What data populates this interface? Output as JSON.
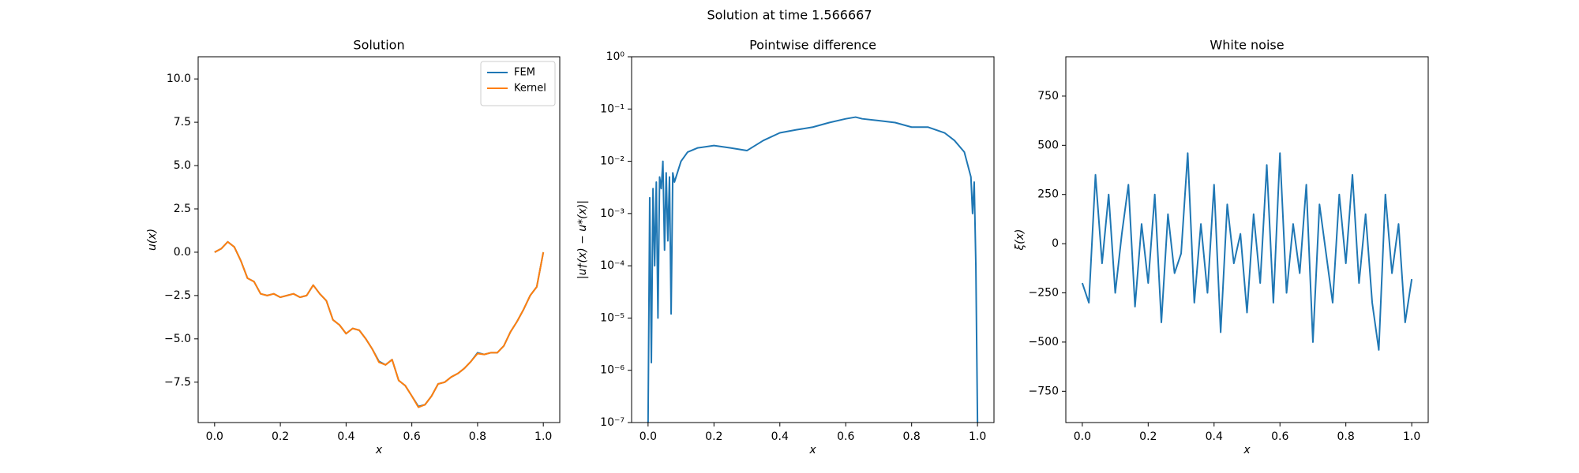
{
  "title": "Solution at time 1.566667",
  "chart_data": [
    {
      "type": "line",
      "title": "Solution",
      "xlabel": "x",
      "ylabel": "u(x)",
      "x": [
        0,
        0.02,
        0.04,
        0.06,
        0.08,
        0.1,
        0.12,
        0.14,
        0.16,
        0.18,
        0.2,
        0.22,
        0.24,
        0.26,
        0.28,
        0.3,
        0.32,
        0.34,
        0.36,
        0.38,
        0.4,
        0.42,
        0.44,
        0.46,
        0.48,
        0.5,
        0.52,
        0.54,
        0.56,
        0.58,
        0.6,
        0.62,
        0.64,
        0.66,
        0.68,
        0.7,
        0.72,
        0.74,
        0.76,
        0.78,
        0.8,
        0.82,
        0.84,
        0.86,
        0.88,
        0.9,
        0.92,
        0.94,
        0.96,
        0.98,
        1.0
      ],
      "series": [
        {
          "name": "FEM",
          "color": "#1f77b4",
          "values": [
            0,
            0.2,
            0.6,
            0.3,
            -0.5,
            -1.5,
            -1.7,
            -2.4,
            -2.5,
            -2.4,
            -2.6,
            -2.5,
            -2.4,
            -2.6,
            -2.5,
            -1.9,
            -2.4,
            -2.8,
            -3.9,
            -4.2,
            -4.7,
            -4.4,
            -4.5,
            -5.0,
            -5.6,
            -6.3,
            -6.5,
            -6.2,
            -7.4,
            -7.7,
            -8.3,
            -8.9,
            -8.8,
            -8.3,
            -7.6,
            -7.5,
            -7.2,
            -7.0,
            -6.7,
            -6.3,
            -5.8,
            -5.9,
            -5.8,
            -5.8,
            -5.4,
            -4.6,
            -4.0,
            -3.3,
            -2.5,
            -2.0,
            0.0
          ]
        },
        {
          "name": "Kernel",
          "color": "#ff7f0e",
          "values": [
            0,
            0.2,
            0.6,
            0.3,
            -0.5,
            -1.5,
            -1.7,
            -2.4,
            -2.5,
            -2.4,
            -2.6,
            -2.5,
            -2.4,
            -2.6,
            -2.5,
            -1.9,
            -2.4,
            -2.8,
            -3.9,
            -4.2,
            -4.7,
            -4.4,
            -4.5,
            -5.0,
            -5.6,
            -6.35,
            -6.5,
            -6.2,
            -7.4,
            -7.7,
            -8.3,
            -8.95,
            -8.8,
            -8.3,
            -7.6,
            -7.5,
            -7.2,
            -7.0,
            -6.7,
            -6.3,
            -5.85,
            -5.9,
            -5.8,
            -5.8,
            -5.4,
            -4.6,
            -4.0,
            -3.3,
            -2.5,
            -2.0,
            0.0
          ]
        }
      ],
      "legend": "upper right",
      "xlim": [
        -0.05,
        1.05
      ],
      "xticks": [
        {
          "value": 0,
          "label": "0.0"
        },
        {
          "value": 0.2,
          "label": "0.2"
        },
        {
          "value": 0.4,
          "label": "0.4"
        },
        {
          "value": 0.6,
          "label": "0.6"
        },
        {
          "value": 0.8,
          "label": "0.8"
        },
        {
          "value": 1,
          "label": "1.0"
        }
      ],
      "ylim": [
        -9.83,
        11.28
      ],
      "yticks": [
        {
          "value": -7.5,
          "label": "−7.5"
        },
        {
          "value": -5,
          "label": "−5.0"
        },
        {
          "value": -2.5,
          "label": "−2.5"
        },
        {
          "value": 0,
          "label": "0.0"
        },
        {
          "value": 2.5,
          "label": "2.5"
        },
        {
          "value": 5,
          "label": "5.0"
        },
        {
          "value": 7.5,
          "label": "7.5"
        },
        {
          "value": 10,
          "label": "10.0"
        }
      ]
    },
    {
      "type": "line",
      "title": "Pointwise difference",
      "xlabel": "x",
      "ylabel": "|u†(x) − u*(x)|",
      "yscale": "log",
      "x": [
        0,
        0.005,
        0.01,
        0.015,
        0.02,
        0.025,
        0.03,
        0.035,
        0.04,
        0.045,
        0.05,
        0.055,
        0.06,
        0.065,
        0.07,
        0.075,
        0.08,
        0.1,
        0.12,
        0.15,
        0.2,
        0.25,
        0.3,
        0.35,
        0.4,
        0.45,
        0.5,
        0.55,
        0.6,
        0.63,
        0.65,
        0.7,
        0.75,
        0.8,
        0.85,
        0.9,
        0.93,
        0.96,
        0.98,
        0.985,
        0.99,
        0.995,
        1.0
      ],
      "series": [
        {
          "name": null,
          "color": "#1f77b4",
          "values": [
            1e-07,
            0.002,
            1.4e-06,
            0.003,
            0.0001,
            0.004,
            1e-05,
            0.005,
            0.003,
            0.01,
            0.0002,
            0.006,
            0.0003,
            0.005,
            1.2e-05,
            0.006,
            0.004,
            0.01,
            0.015,
            0.018,
            0.02,
            0.018,
            0.016,
            0.025,
            0.035,
            0.04,
            0.045,
            0.055,
            0.065,
            0.07,
            0.065,
            0.06,
            0.055,
            0.045,
            0.045,
            0.035,
            0.025,
            0.015,
            0.005,
            0.001,
            0.004,
            0.0001,
            1e-07
          ]
        }
      ],
      "xlim": [
        -0.05,
        1.05
      ],
      "xticks": [
        {
          "value": 0,
          "label": "0.0"
        },
        {
          "value": 0.2,
          "label": "0.2"
        },
        {
          "value": 0.4,
          "label": "0.4"
        },
        {
          "value": 0.6,
          "label": "0.6"
        },
        {
          "value": 0.8,
          "label": "0.8"
        },
        {
          "value": 1,
          "label": "1.0"
        }
      ],
      "ylim": [
        1e-07,
        1
      ],
      "yticks": [
        {
          "value": 1e-07,
          "label": "10⁻⁷"
        },
        {
          "value": 1e-06,
          "label": "10⁻⁶"
        },
        {
          "value": 1e-05,
          "label": "10⁻⁵"
        },
        {
          "value": 0.0001,
          "label": "10⁻⁴"
        },
        {
          "value": 0.001,
          "label": "10⁻³"
        },
        {
          "value": 0.01,
          "label": "10⁻²"
        },
        {
          "value": 0.1,
          "label": "10⁻¹"
        },
        {
          "value": 1,
          "label": "10⁰"
        }
      ]
    },
    {
      "type": "line",
      "title": "White noise",
      "xlabel": "x",
      "ylabel": "ξ(x)",
      "x": [
        0,
        0.02,
        0.04,
        0.06,
        0.08,
        0.1,
        0.12,
        0.14,
        0.16,
        0.18,
        0.2,
        0.22,
        0.24,
        0.26,
        0.28,
        0.3,
        0.32,
        0.34,
        0.36,
        0.38,
        0.4,
        0.42,
        0.44,
        0.46,
        0.48,
        0.5,
        0.52,
        0.54,
        0.56,
        0.58,
        0.6,
        0.62,
        0.64,
        0.66,
        0.68,
        0.7,
        0.72,
        0.74,
        0.76,
        0.78,
        0.8,
        0.82,
        0.84,
        0.86,
        0.88,
        0.9,
        0.92,
        0.94,
        0.96,
        0.98,
        1.0
      ],
      "series": [
        {
          "name": null,
          "color": "#1f77b4",
          "values": [
            -200,
            -300,
            350,
            -100,
            250,
            -250,
            50,
            300,
            -320,
            100,
            -200,
            250,
            -400,
            150,
            -150,
            -50,
            460,
            -300,
            100,
            -250,
            300,
            -450,
            200,
            -100,
            50,
            -350,
            150,
            -200,
            400,
            -300,
            460,
            -250,
            100,
            -150,
            300,
            -500,
            200,
            -50,
            -300,
            250,
            -100,
            350,
            -200,
            150,
            -300,
            -540,
            250,
            -150,
            100,
            -400,
            -180
          ]
        }
      ],
      "xlim": [
        -0.05,
        1.05
      ],
      "xticks": [
        {
          "value": 0,
          "label": "0.0"
        },
        {
          "value": 0.2,
          "label": "0.2"
        },
        {
          "value": 0.4,
          "label": "0.4"
        },
        {
          "value": 0.6,
          "label": "0.6"
        },
        {
          "value": 0.8,
          "label": "0.8"
        },
        {
          "value": 1,
          "label": "1.0"
        }
      ],
      "ylim": [
        -909,
        950
      ],
      "yticks": [
        {
          "value": -750,
          "label": "−750"
        },
        {
          "value": -500,
          "label": "−500"
        },
        {
          "value": -250,
          "label": "−250"
        },
        0,
        250,
        500,
        750
      ]
    }
  ]
}
